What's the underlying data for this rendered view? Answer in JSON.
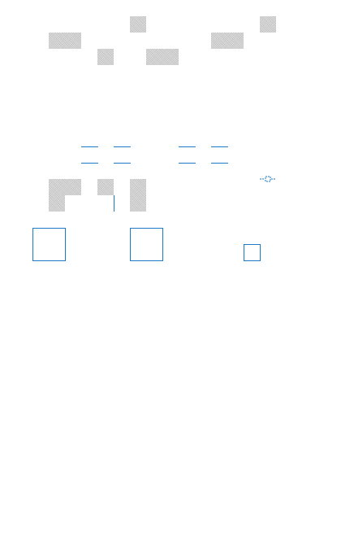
{
  "colors": {
    "block_fill": "#cccccc",
    "outline": "#1d7ac6",
    "background": "#ffffff"
  },
  "icons": {
    "connector": "dashed-connector-icon"
  }
}
